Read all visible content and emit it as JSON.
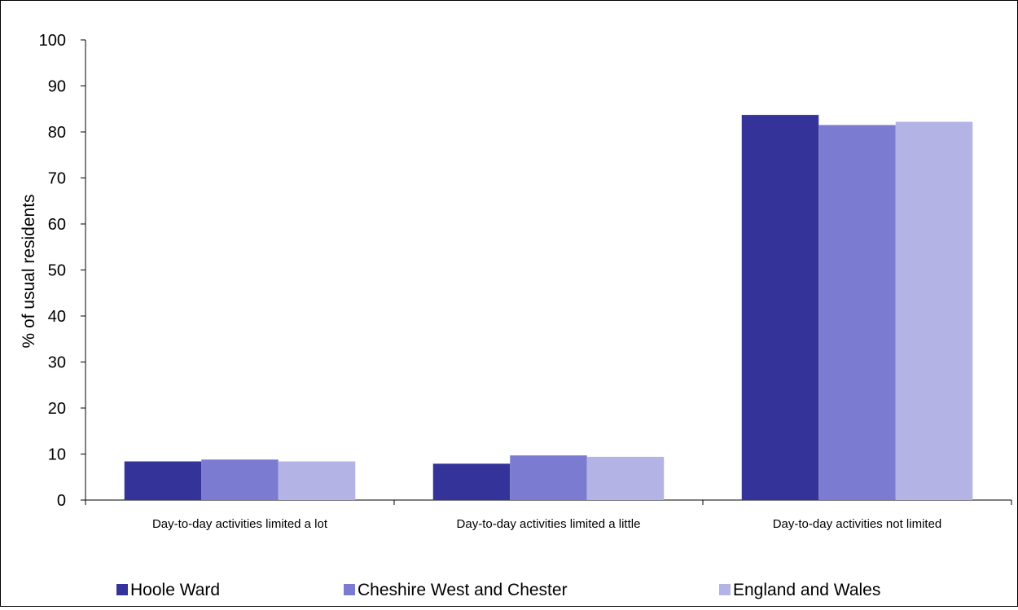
{
  "chart_data": {
    "type": "bar",
    "categories": [
      "Day-to-day activities limited a lot",
      "Day-to-day activities limited a little",
      "Day-to-day activities not limited"
    ],
    "series": [
      {
        "name": "Hoole Ward",
        "color": "#333399",
        "values": [
          8.4,
          7.9,
          83.7
        ]
      },
      {
        "name": "Cheshire West and Chester",
        "color": "#7b7bd2",
        "values": [
          8.8,
          9.7,
          81.5
        ]
      },
      {
        "name": "England and Wales",
        "color": "#b3b3e6",
        "values": [
          8.4,
          9.4,
          82.2
        ]
      }
    ],
    "ylabel": "% of usual residents",
    "ylim": [
      0,
      100
    ],
    "yticks": [
      0,
      10,
      20,
      30,
      40,
      50,
      60,
      70,
      80,
      90,
      100
    ],
    "grid": false,
    "legend_position": "bottom"
  }
}
